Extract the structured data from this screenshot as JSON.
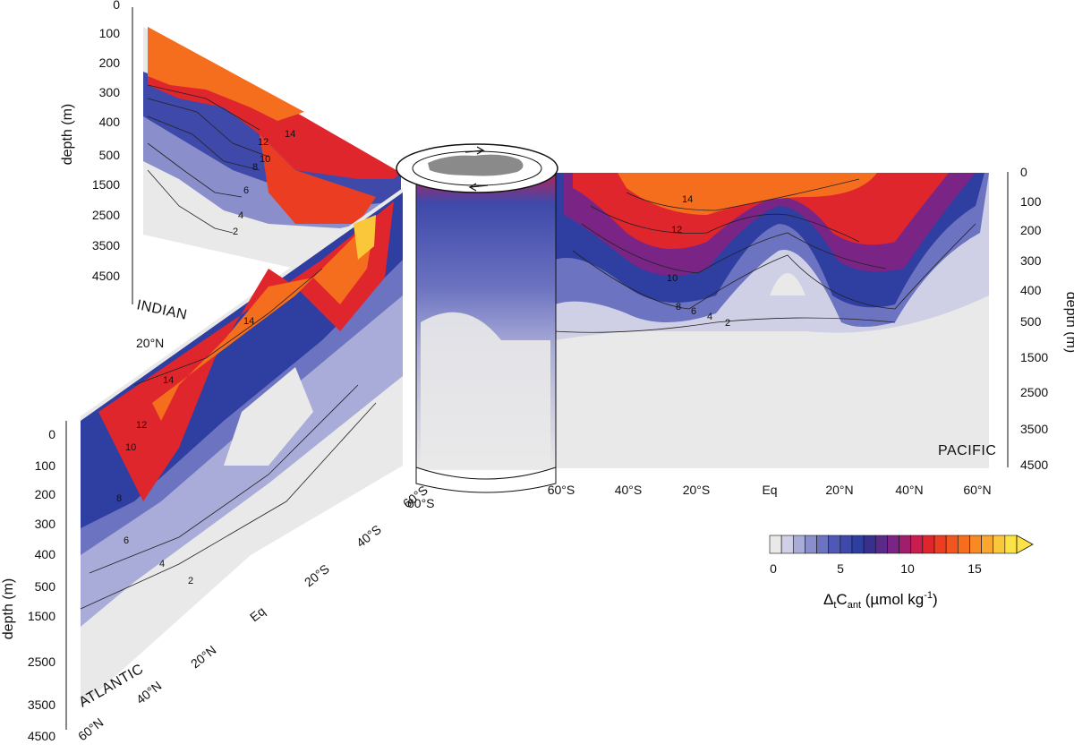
{
  "chart_data": {
    "type": "heatmap",
    "colorbar": {
      "ticks": [
        "0",
        "5",
        "10",
        "15"
      ],
      "label_main": "Δ",
      "label_sub1": "t",
      "label_c": "C",
      "label_sub2": "ant",
      "label_unit_pre": " (µmol kg",
      "label_unit_sup": "-1",
      "label_unit_post": ")",
      "colors": [
        "#e9e9e9",
        "#cfd0e6",
        "#a9acd8",
        "#8a8fcb",
        "#6c73c0",
        "#4f58b5",
        "#3e49aa",
        "#2f3ea1",
        "#38308f",
        "#5a2a8a",
        "#7a2586",
        "#a01f6c",
        "#c81d4e",
        "#e0262d",
        "#ea3d22",
        "#f0561f",
        "#f46e1e",
        "#f78a24",
        "#f9a730",
        "#fac63a",
        "#fce345"
      ],
      "range": [
        0,
        17
      ]
    },
    "contour_labels": [
      "2",
      "4",
      "6",
      "8",
      "10",
      "12",
      "14"
    ],
    "sections": [
      {
        "name": "INDIAN",
        "depth_ticks": [
          "0",
          "100",
          "200",
          "300",
          "400",
          "500",
          "1500",
          "2500",
          "3500",
          "4500"
        ],
        "depth_label": "depth (m)",
        "lat_ticks": [
          "20°N"
        ]
      },
      {
        "name": "PACIFIC",
        "depth_ticks": [
          "0",
          "100",
          "200",
          "300",
          "400",
          "500",
          "1500",
          "2500",
          "3500",
          "4500"
        ],
        "depth_label": "depth (m)",
        "lat_ticks": [
          "60°S",
          "40°S",
          "20°S",
          "Eq",
          "20°N",
          "40°N",
          "60°N"
        ]
      },
      {
        "name": "ATLANTIC",
        "depth_ticks": [
          "0",
          "100",
          "200",
          "300",
          "400",
          "500",
          "1500",
          "2500",
          "3500",
          "4500"
        ],
        "depth_label": "depth (m)",
        "lat_ticks": [
          "60°S",
          "40°S",
          "20°S",
          "Eq",
          "20°N",
          "40°N",
          "60°N"
        ]
      }
    ],
    "southern_ocean_label": "60°S"
  }
}
